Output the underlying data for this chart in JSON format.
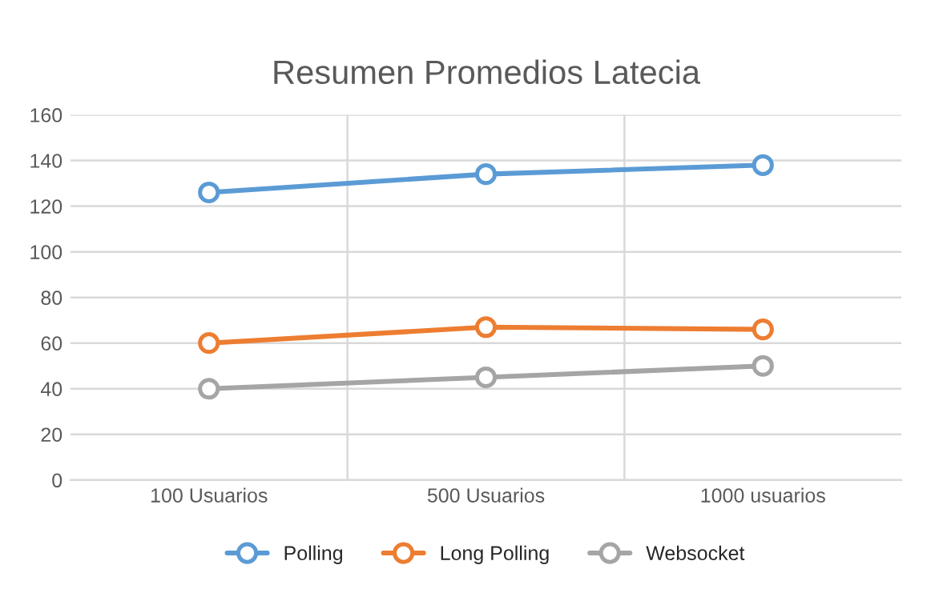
{
  "chart_data": {
    "type": "line",
    "title": "Resumen Promedios Latecia",
    "categories": [
      "100 Usuarios",
      "500 Usuarios",
      "1000 usuarios"
    ],
    "series": [
      {
        "name": "Polling",
        "color": "#5b9bd5",
        "values": [
          126,
          134,
          138
        ]
      },
      {
        "name": "Long Polling",
        "color": "#ed7d31",
        "values": [
          60,
          67,
          66
        ]
      },
      {
        "name": "Websocket",
        "color": "#a5a5a5",
        "values": [
          40,
          45,
          50
        ]
      }
    ],
    "ylim": [
      0,
      160
    ],
    "yticks": [
      0,
      20,
      40,
      60,
      80,
      100,
      120,
      140,
      160
    ],
    "grid": true,
    "legend": "bottom",
    "marker": "circle",
    "line_style": "solid"
  }
}
